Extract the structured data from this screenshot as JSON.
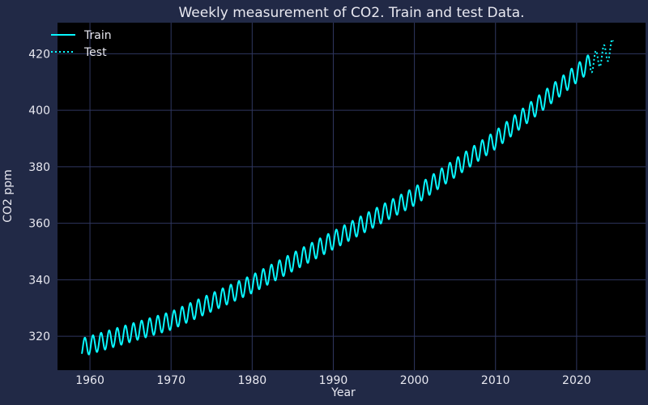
{
  "chart_data": {
    "type": "line",
    "title": "Weekly measurement of CO2. Train and test Data.",
    "xlabel": "Year",
    "ylabel": "CO2 ppm",
    "xlim": [
      1956,
      2028.5
    ],
    "ylim": [
      308,
      431
    ],
    "xticks": [
      1960,
      1970,
      1980,
      1990,
      2000,
      2010,
      2020
    ],
    "yticks": [
      320,
      340,
      360,
      380,
      400,
      420
    ],
    "grid": true,
    "legend_position": "top-left",
    "background": "#000000",
    "series": [
      {
        "name": "Train",
        "color": "#08F7FE",
        "style": "solid",
        "x_range": [
          1959.0,
          2021.7
        ],
        "trend": [
          [
            1959,
            316.0
          ],
          [
            1970,
            325.5
          ],
          [
            1980,
            338.5
          ],
          [
            1990,
            354.0
          ],
          [
            2000,
            369.5
          ],
          [
            2010,
            389.5
          ],
          [
            2020,
            413.0
          ]
        ],
        "seasonal_amplitude": 3.2
      },
      {
        "name": "Test",
        "color": "#08F7FE",
        "style": "dotted",
        "x_range": [
          2021.7,
          2024.5
        ],
        "trend": [
          [
            2020,
            413.0
          ],
          [
            2024.5,
            422.0
          ]
        ],
        "seasonal_amplitude": 3.3
      }
    ]
  }
}
